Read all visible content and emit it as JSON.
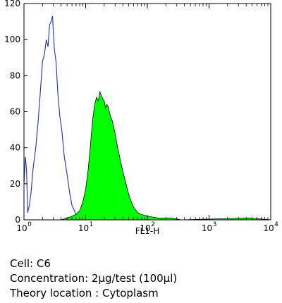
{
  "chart_data": {
    "type": "area",
    "xlabel": "FL1-H",
    "ylabel": "",
    "xscale": "log",
    "xlim": [
      1,
      10000
    ],
    "ylim": [
      0,
      120
    ],
    "x_ticks": [
      {
        "base": "10",
        "exp": "0"
      },
      {
        "base": "10",
        "exp": "1"
      },
      {
        "base": "10",
        "exp": "2"
      },
      {
        "base": "10",
        "exp": "3"
      },
      {
        "base": "10",
        "exp": "4"
      }
    ],
    "y_ticks": [
      "0",
      "20",
      "40",
      "60",
      "80",
      "100",
      "120"
    ],
    "grid": false,
    "series": [
      {
        "color": "#1f2fbf",
        "style": "outline",
        "points": [
          [
            1.0,
            20
          ],
          [
            1.05,
            35
          ],
          [
            1.1,
            28
          ],
          [
            1.15,
            4
          ],
          [
            1.22,
            8
          ],
          [
            1.3,
            15
          ],
          [
            1.4,
            28
          ],
          [
            1.55,
            40
          ],
          [
            1.7,
            55
          ],
          [
            1.85,
            72
          ],
          [
            2.0,
            88
          ],
          [
            2.15,
            92
          ],
          [
            2.3,
            100
          ],
          [
            2.45,
            96
          ],
          [
            2.6,
            108
          ],
          [
            2.75,
            110
          ],
          [
            2.9,
            113
          ],
          [
            3.0,
            104
          ],
          [
            3.1,
            95
          ],
          [
            3.3,
            88
          ],
          [
            3.55,
            70
          ],
          [
            3.8,
            58
          ],
          [
            4.1,
            50
          ],
          [
            4.5,
            35
          ],
          [
            5.0,
            25
          ],
          [
            5.5,
            15
          ],
          [
            6.0,
            8
          ],
          [
            6.8,
            4
          ],
          [
            7.5,
            1
          ],
          [
            8.5,
            0
          ]
        ]
      },
      {
        "color": "#00ff00",
        "style": "filled",
        "points": [
          [
            4.0,
            0
          ],
          [
            5.0,
            1
          ],
          [
            6.0,
            2
          ],
          [
            7.0,
            3
          ],
          [
            8.0,
            5
          ],
          [
            9.0,
            10
          ],
          [
            10.0,
            17
          ],
          [
            11.0,
            28
          ],
          [
            12.0,
            42
          ],
          [
            13.0,
            56
          ],
          [
            14.0,
            64
          ],
          [
            15.0,
            68
          ],
          [
            16.0,
            66
          ],
          [
            17.0,
            71
          ],
          [
            18.0,
            69
          ],
          [
            19.0,
            67
          ],
          [
            20.0,
            66
          ],
          [
            21.0,
            62
          ],
          [
            22.0,
            64
          ],
          [
            23.0,
            63
          ],
          [
            25.0,
            58
          ],
          [
            27.0,
            55
          ],
          [
            30.0,
            48
          ],
          [
            33.0,
            40
          ],
          [
            36.0,
            34
          ],
          [
            40.0,
            27
          ],
          [
            45.0,
            20
          ],
          [
            50.0,
            14
          ],
          [
            55.0,
            10
          ],
          [
            60.0,
            7
          ],
          [
            70.0,
            4
          ],
          [
            80.0,
            3
          ],
          [
            100.0,
            2
          ],
          [
            150.0,
            1
          ],
          [
            250.0,
            1
          ],
          [
            350.0,
            0
          ],
          [
            4500.0,
            1
          ],
          [
            10000.0,
            0
          ]
        ]
      }
    ]
  },
  "caption": {
    "cell": "Cell: C6",
    "concentration": "Concentration: 2µg/test (100µl)",
    "location": "Theory location : Cytoplasm"
  }
}
